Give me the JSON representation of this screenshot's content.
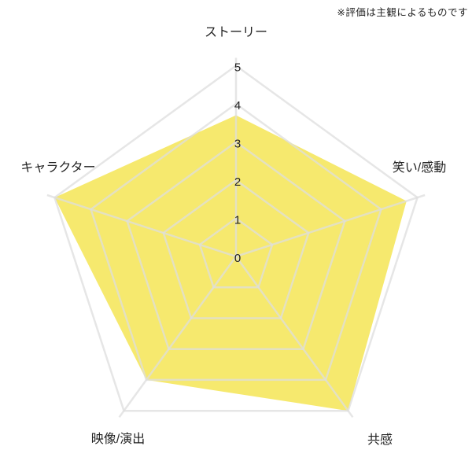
{
  "note": "※評価は主観によるものです",
  "chart_data": {
    "type": "radar",
    "categories": [
      "ストーリー",
      "笑い/感動",
      "共感",
      "映像/演出",
      "キャラクター"
    ],
    "values": [
      3.7,
      4.7,
      5,
      4,
      5
    ],
    "scale": {
      "min": 0,
      "max": 5,
      "tick_step": 1,
      "ticks": [
        0,
        1,
        2,
        3,
        4,
        5
      ]
    },
    "grid": true,
    "legend_position": "none",
    "title": "",
    "fill_color": "#F6E96E",
    "grid_color": "#DDDDDD",
    "text_color": "#222222"
  }
}
